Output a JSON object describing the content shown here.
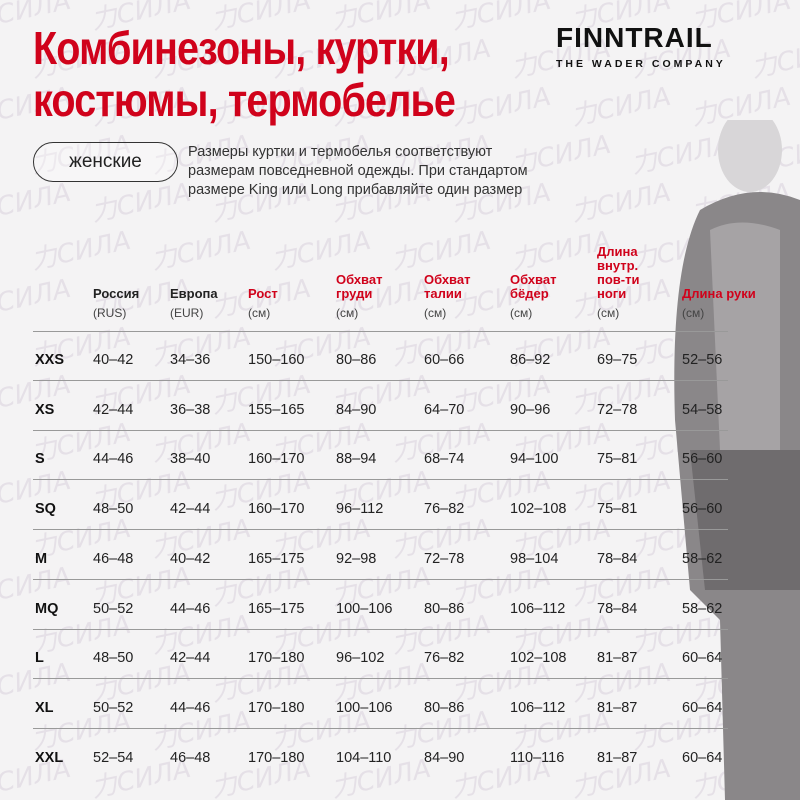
{
  "title_lines": [
    "Комбинезоны, куртки,",
    "костюмы, термобелье"
  ],
  "logo": {
    "brand": "FINNTRAIL",
    "tagline": "THE WADER COMPANY"
  },
  "watermark": "力СИЛА",
  "category_pill": "женские",
  "note": "Размеры куртки и термобелья соответствуют размерам повседневной одежды. При стандартом размере King или Long прибавляйте один размер",
  "accent_color": "#d0021b",
  "columns": [
    {
      "label": "Россия",
      "unit": "(RUS)",
      "red": false
    },
    {
      "label": "Европа",
      "unit": "(EUR)",
      "red": false
    },
    {
      "label": "Рост",
      "unit": "(см)",
      "red": true
    },
    {
      "label": "Обхват груди",
      "unit": "(см)",
      "red": true
    },
    {
      "label": "Обхват талии",
      "unit": "(см)",
      "red": true
    },
    {
      "label": "Обхват бёдер",
      "unit": "(см)",
      "red": true
    },
    {
      "label": "Длина внутр. пов-ти ноги",
      "unit": "(см)",
      "red": true
    },
    {
      "label": "Длина руки",
      "unit": "(см)",
      "red": true
    }
  ],
  "rows": [
    [
      "XXS",
      "40–42",
      "34–36",
      "150–160",
      "80–86",
      "60–66",
      "86–92",
      "69–75",
      "52–56"
    ],
    [
      "XS",
      "42–44",
      "36–38",
      "155–165",
      "84–90",
      "64–70",
      "90–96",
      "72–78",
      "54–58"
    ],
    [
      "S",
      "44–46",
      "38–40",
      "160–170",
      "88–94",
      "68–74",
      "94–100",
      "75–81",
      "56–60"
    ],
    [
      "SQ",
      "48–50",
      "42–44",
      "160–170",
      "96–112",
      "76–82",
      "102–108",
      "75–81",
      "56–60"
    ],
    [
      "M",
      "46–48",
      "40–42",
      "165–175",
      "92–98",
      "72–78",
      "98–104",
      "78–84",
      "58–62"
    ],
    [
      "MQ",
      "50–52",
      "44–46",
      "165–175",
      "100–106",
      "80–86",
      "106–112",
      "78–84",
      "58–62"
    ],
    [
      "L",
      "48–50",
      "42–44",
      "170–180",
      "96–102",
      "76–82",
      "102–108",
      "81–87",
      "60–64"
    ],
    [
      "XL",
      "50–52",
      "44–46",
      "170–180",
      "100–106",
      "80–86",
      "106–112",
      "81–87",
      "60–64"
    ],
    [
      "XXL",
      "52–54",
      "46–48",
      "170–180",
      "104–110",
      "84–90",
      "110–116",
      "81–87",
      "60–64"
    ]
  ]
}
